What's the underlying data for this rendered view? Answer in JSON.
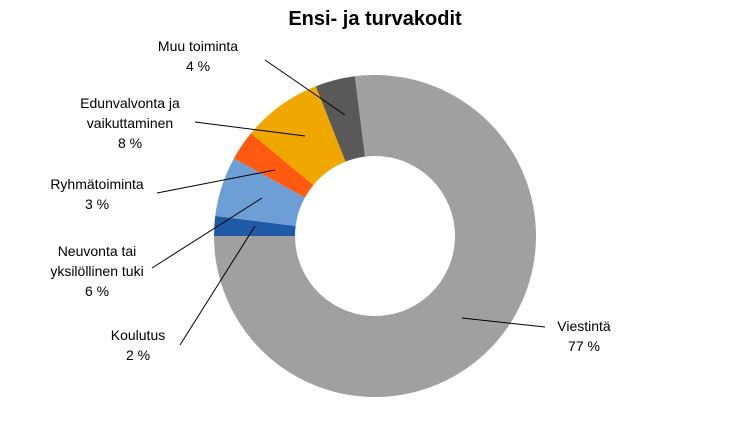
{
  "chart_data": {
    "type": "donut",
    "title": "Ensi- ja turvakodit",
    "categories": [
      "Viestintä",
      "Koulutus",
      "Neuvonta tai yksilöllinen tuki",
      "Ryhmätoiminta",
      "Edunvalvonta ja vaikuttaminen",
      "Muu toiminta"
    ],
    "values": [
      77,
      2,
      6,
      3,
      8,
      4
    ],
    "value_labels": [
      "77 %",
      "2 %",
      "6 %",
      "3 %",
      "8 %",
      "4 %"
    ],
    "colors": [
      "#a0a0a0",
      "#1f5aa6",
      "#6d9fd6",
      "#ff5a0f",
      "#f0a800",
      "#595959"
    ]
  }
}
